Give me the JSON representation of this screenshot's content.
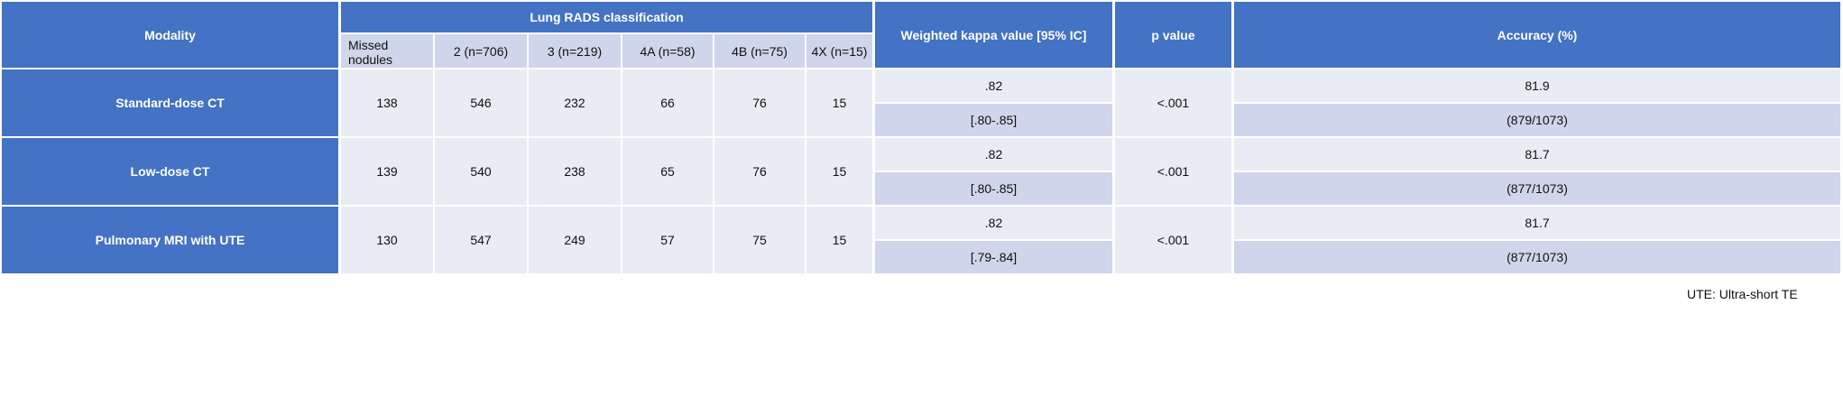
{
  "header": {
    "modality": "Modality",
    "group": "Lung RADS classification",
    "subheaders": [
      "Missed nodules",
      "2 (n=706)",
      "3 (n=219)",
      "4A (n=58)",
      "4B (n=75)",
      "4X (n=15)"
    ],
    "kappa": "Weighted kappa value [95% IC]",
    "p": "p value",
    "accuracy": "Accuracy (%)"
  },
  "rows": [
    {
      "modality": "Standard-dose CT",
      "counts": [
        138,
        546,
        232,
        66,
        76,
        15
      ],
      "kappa": ".82",
      "kappa_ci": "[.80-.85]",
      "p": "<.001",
      "accuracy": 81.9,
      "accuracy_fraction": "(879/1073)"
    },
    {
      "modality": "Low-dose CT",
      "counts": [
        139,
        540,
        238,
        65,
        76,
        15
      ],
      "kappa": ".82",
      "kappa_ci": "[.80-.85]",
      "p": "<.001",
      "accuracy": 81.7,
      "accuracy_fraction": "(877/1073)"
    },
    {
      "modality": "Pulmonary MRI with UTE",
      "counts": [
        130,
        547,
        249,
        57,
        75,
        15
      ],
      "kappa": ".82",
      "kappa_ci": "[.79-.84]",
      "p": "<.001",
      "accuracy": 81.7,
      "accuracy_fraction": "(877/1073)"
    }
  ],
  "footnote": "UTE:  Ultra-short TE"
}
